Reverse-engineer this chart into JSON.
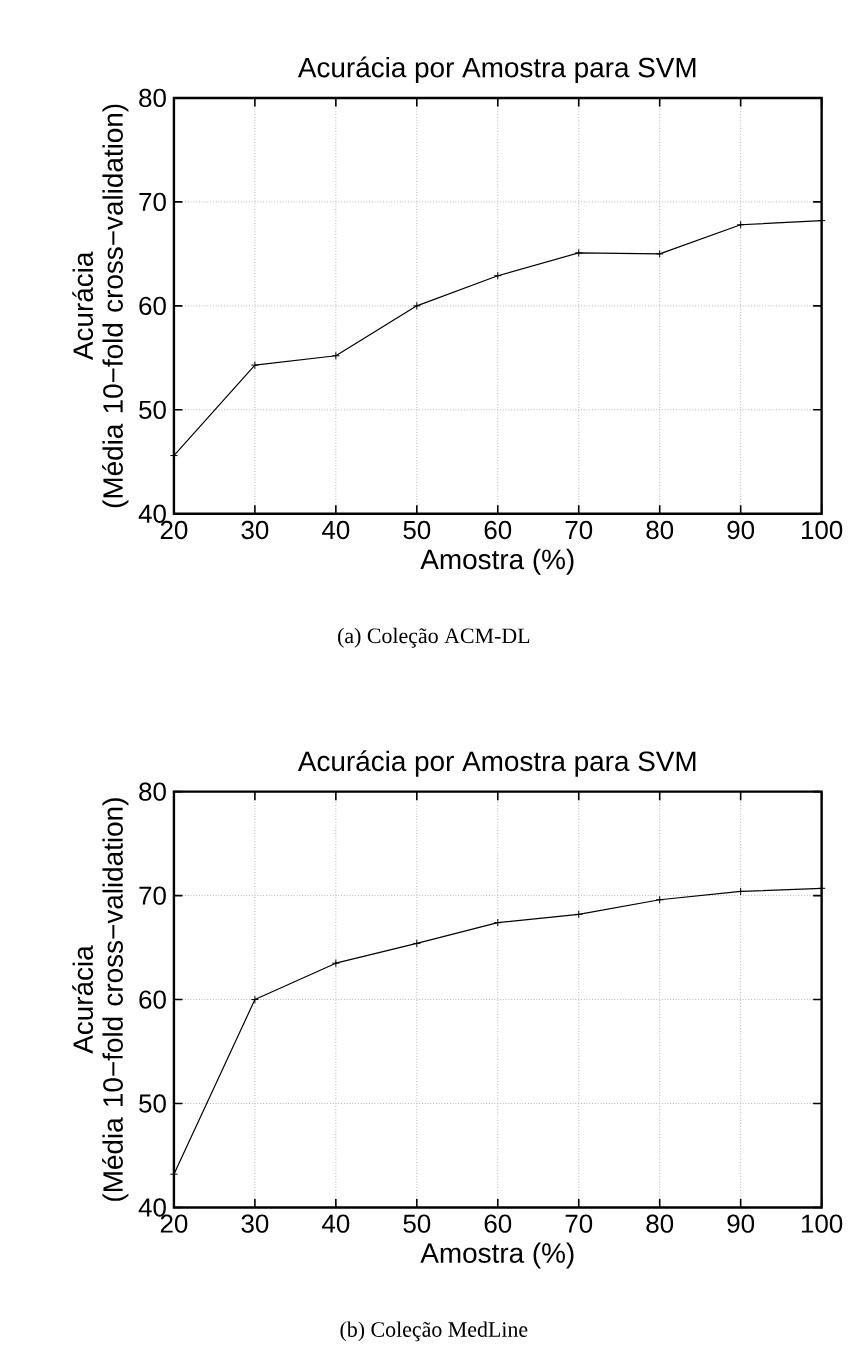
{
  "chart_data": [
    {
      "type": "line",
      "title": "Acurácia por Amostra para SVM",
      "xlabel": "Amostra (%)",
      "ylabel": "Acurácia\n(Média 10−fold cross−validation)",
      "x": [
        20,
        30,
        40,
        50,
        60,
        70,
        80,
        90,
        100
      ],
      "values": [
        45.6,
        54.3,
        55.2,
        60.0,
        62.9,
        65.1,
        65.0,
        67.8,
        68.2
      ],
      "color": "#000000",
      "marker": "cross",
      "grid": true,
      "xlim": [
        20,
        100
      ],
      "xticks": [
        20,
        30,
        40,
        50,
        60,
        70,
        80,
        90,
        100
      ],
      "ylim": [
        40,
        80
      ],
      "yticks": [
        40,
        50,
        60,
        70,
        80
      ],
      "annotations": [
        "(a) Coleção ACM-DL"
      ]
    },
    {
      "type": "line",
      "title": "Acurácia por Amostra para SVM",
      "xlabel": "Amostra (%)",
      "ylabel": "Acurácia\n(Média 10−fold cross−validation)",
      "x": [
        20,
        30,
        40,
        50,
        60,
        70,
        80,
        90,
        100
      ],
      "values": [
        43.2,
        60.0,
        63.5,
        65.4,
        67.4,
        68.2,
        69.6,
        70.4,
        70.7
      ],
      "color": "#000000",
      "marker": "cross",
      "grid": true,
      "xlim": [
        20,
        100
      ],
      "xticks": [
        20,
        30,
        40,
        50,
        60,
        70,
        80,
        90,
        100
      ],
      "ylim": [
        40,
        80
      ],
      "yticks": [
        40,
        50,
        60,
        70,
        80
      ],
      "annotations": [
        "(b) Coleção MedLine"
      ]
    }
  ]
}
